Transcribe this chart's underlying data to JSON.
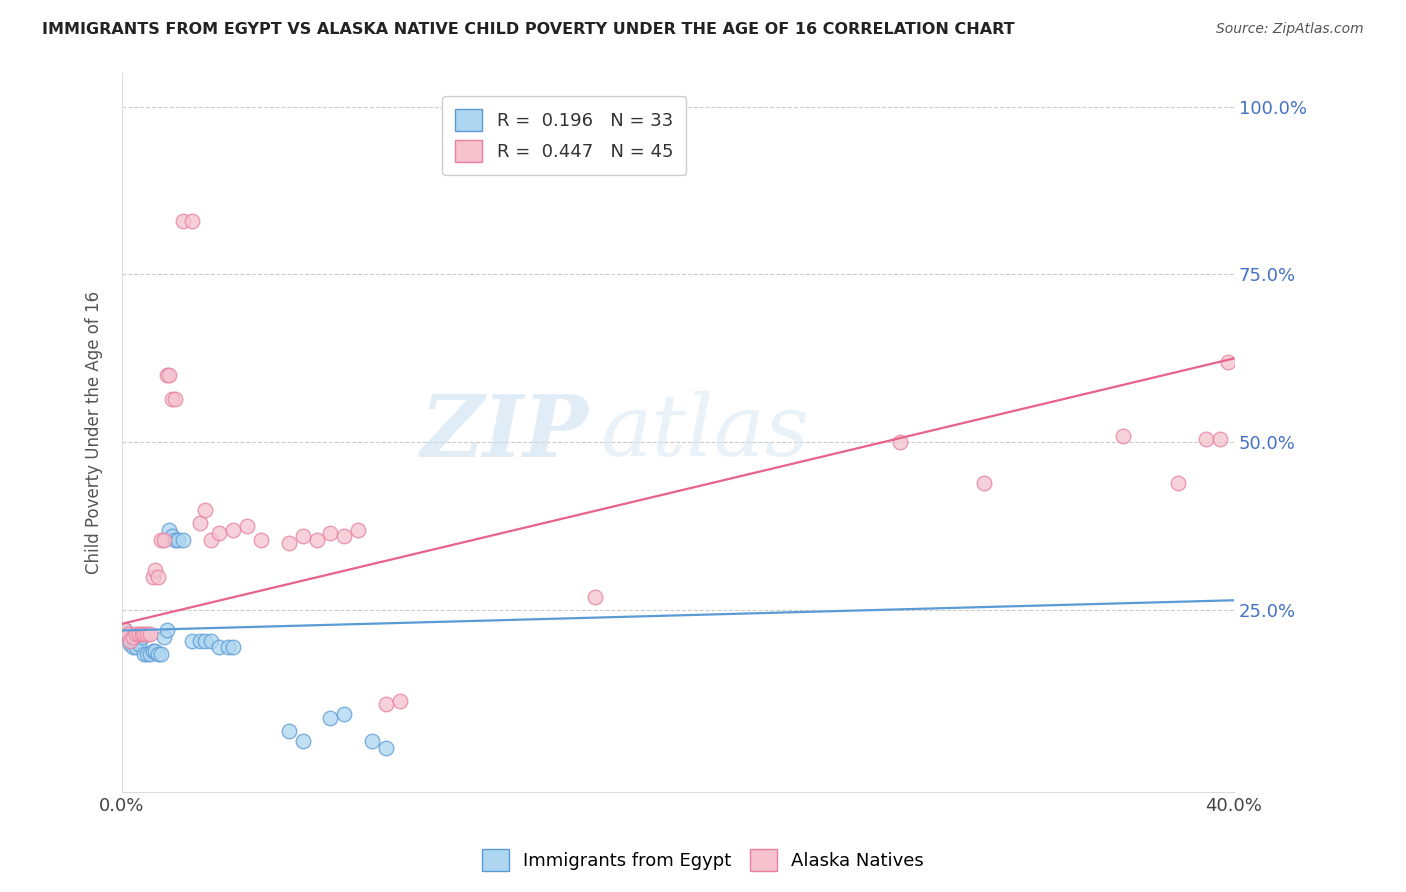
{
  "title": "IMMIGRANTS FROM EGYPT VS ALASKA NATIVE CHILD POVERTY UNDER THE AGE OF 16 CORRELATION CHART",
  "source": "Source: ZipAtlas.com",
  "ylabel": "Child Poverty Under the Age of 16",
  "xlim": [
    0.0,
    0.4
  ],
  "ylim": [
    -0.02,
    1.05
  ],
  "ytick_values": [
    0.0,
    0.25,
    0.5,
    0.75,
    1.0
  ],
  "xtick_values": [
    0.0,
    0.05,
    0.1,
    0.15,
    0.2,
    0.25,
    0.3,
    0.35,
    0.4
  ],
  "right_ytick_labels": [
    "100.0%",
    "75.0%",
    "50.0%",
    "25.0%"
  ],
  "right_ytick_values": [
    1.0,
    0.75,
    0.5,
    0.25
  ],
  "watermark_zip": "ZIP",
  "watermark_atlas": "atlas",
  "blue_scatter": [
    [
      0.001,
      0.22
    ],
    [
      0.002,
      0.21
    ],
    [
      0.003,
      0.2
    ],
    [
      0.004,
      0.195
    ],
    [
      0.005,
      0.195
    ],
    [
      0.006,
      0.2
    ],
    [
      0.007,
      0.21
    ],
    [
      0.008,
      0.185
    ],
    [
      0.009,
      0.185
    ],
    [
      0.01,
      0.185
    ],
    [
      0.011,
      0.19
    ],
    [
      0.012,
      0.19
    ],
    [
      0.013,
      0.185
    ],
    [
      0.014,
      0.185
    ],
    [
      0.015,
      0.21
    ],
    [
      0.016,
      0.22
    ],
    [
      0.017,
      0.37
    ],
    [
      0.018,
      0.36
    ],
    [
      0.019,
      0.355
    ],
    [
      0.02,
      0.355
    ],
    [
      0.022,
      0.355
    ],
    [
      0.025,
      0.205
    ],
    [
      0.028,
      0.205
    ],
    [
      0.03,
      0.205
    ],
    [
      0.032,
      0.205
    ],
    [
      0.035,
      0.195
    ],
    [
      0.038,
      0.195
    ],
    [
      0.04,
      0.195
    ],
    [
      0.06,
      0.07
    ],
    [
      0.065,
      0.055
    ],
    [
      0.075,
      0.09
    ],
    [
      0.08,
      0.095
    ],
    [
      0.09,
      0.055
    ],
    [
      0.095,
      0.045
    ]
  ],
  "pink_scatter": [
    [
      0.001,
      0.22
    ],
    [
      0.002,
      0.215
    ],
    [
      0.003,
      0.205
    ],
    [
      0.004,
      0.21
    ],
    [
      0.005,
      0.215
    ],
    [
      0.006,
      0.215
    ],
    [
      0.007,
      0.215
    ],
    [
      0.008,
      0.215
    ],
    [
      0.009,
      0.215
    ],
    [
      0.01,
      0.215
    ],
    [
      0.011,
      0.3
    ],
    [
      0.012,
      0.31
    ],
    [
      0.013,
      0.3
    ],
    [
      0.014,
      0.355
    ],
    [
      0.015,
      0.355
    ],
    [
      0.016,
      0.6
    ],
    [
      0.017,
      0.6
    ],
    [
      0.018,
      0.565
    ],
    [
      0.019,
      0.565
    ],
    [
      0.022,
      0.83
    ],
    [
      0.025,
      0.83
    ],
    [
      0.028,
      0.38
    ],
    [
      0.03,
      0.4
    ],
    [
      0.032,
      0.355
    ],
    [
      0.035,
      0.365
    ],
    [
      0.04,
      0.37
    ],
    [
      0.045,
      0.375
    ],
    [
      0.05,
      0.355
    ],
    [
      0.06,
      0.35
    ],
    [
      0.065,
      0.36
    ],
    [
      0.07,
      0.355
    ],
    [
      0.075,
      0.365
    ],
    [
      0.08,
      0.36
    ],
    [
      0.085,
      0.37
    ],
    [
      0.095,
      0.11
    ],
    [
      0.1,
      0.115
    ],
    [
      0.17,
      0.27
    ],
    [
      0.28,
      0.5
    ],
    [
      0.31,
      0.44
    ],
    [
      0.36,
      0.51
    ],
    [
      0.38,
      0.44
    ],
    [
      0.39,
      0.505
    ],
    [
      0.395,
      0.505
    ],
    [
      0.398,
      0.62
    ]
  ],
  "pink_line_x": [
    0.0,
    0.4
  ],
  "pink_line_y": [
    0.23,
    0.625
  ],
  "blue_line_x": [
    0.0,
    0.4
  ],
  "blue_line_y": [
    0.22,
    0.265
  ]
}
